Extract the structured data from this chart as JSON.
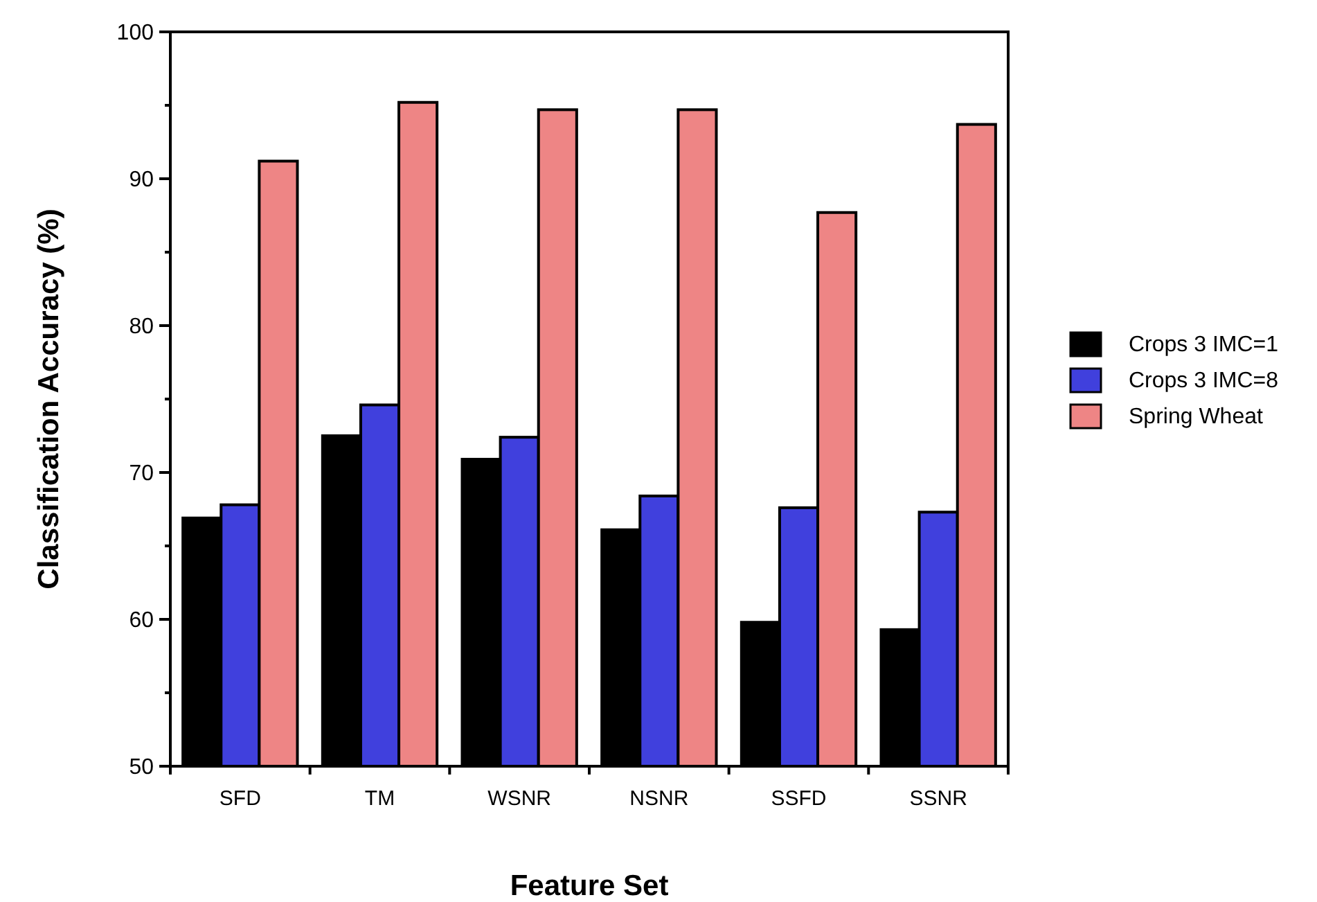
{
  "chart_data": {
    "type": "bar",
    "xlabel": "Feature Set",
    "ylabel": "Classification Accuracy (%)",
    "categories": [
      "SFD",
      "TM",
      "WSNR",
      "NSNR",
      "SSFD",
      "SSNR"
    ],
    "series": [
      {
        "name": "Crops 3 IMC=1",
        "color": "#000000",
        "values": [
          66.9,
          72.5,
          70.9,
          66.1,
          59.8,
          59.3
        ]
      },
      {
        "name": "Crops 3 IMC=8",
        "color": "#4040dd",
        "values": [
          67.8,
          74.6,
          72.4,
          68.4,
          67.6,
          67.3
        ]
      },
      {
        "name": "Spring Wheat",
        "color": "#ee8585",
        "values": [
          91.2,
          95.2,
          94.7,
          94.7,
          87.7,
          93.7
        ]
      }
    ],
    "ylim": [
      50,
      100
    ],
    "yticks": [
      50,
      {
        "value": 55,
        "label": null
      },
      60,
      {
        "value": 65,
        "label": null
      },
      70,
      {
        "value": 75,
        "label": null
      },
      80,
      {
        "value": 85,
        "label": null
      },
      90,
      {
        "value": 95,
        "label": null
      },
      100
    ],
    "grid": false,
    "legend": "right"
  }
}
